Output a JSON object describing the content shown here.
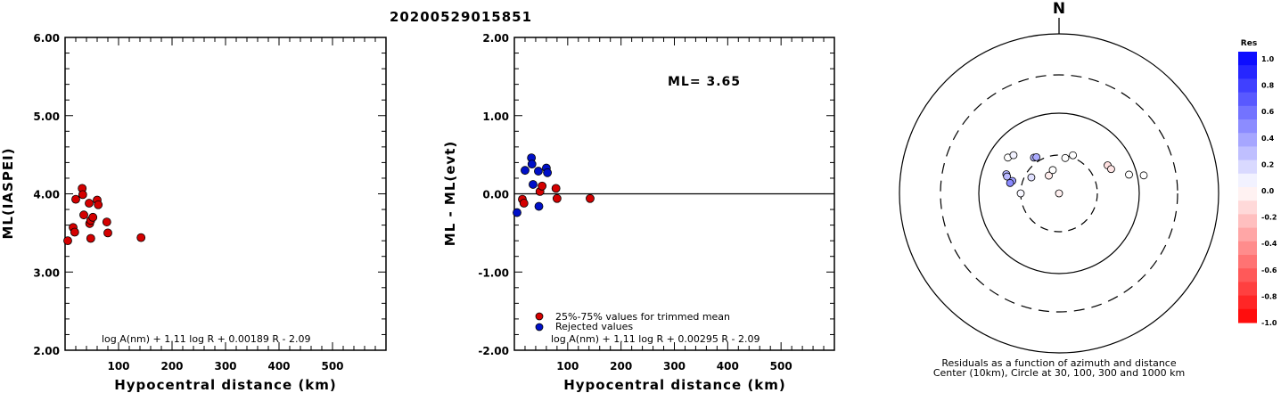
{
  "title": "20200529015851",
  "left_panel": {
    "ylabel": "ML(IASPEI)",
    "xlabel": "Hypocentral distance (km)",
    "formula": "log A(nm) + 1.11 log R + 0.00189 R - 2.09"
  },
  "middle_panel": {
    "ylabel": "ML - ML(evt)",
    "xlabel": "Hypocentral distance (km)",
    "ml_text": "ML= 3.65",
    "legend_used": "25%-75% values for trimmed mean",
    "legend_rejected": "Rejected values",
    "formula": "log A(nm) + 1.11 log R + 0.00295 R - 2.09"
  },
  "polar_panel": {
    "north_label": "N",
    "caption1": "Residuals as a function of azimuth and distance",
    "caption2": "Center (10km), Circle at 30, 100, 300 and 1000 km",
    "colorbar_title": "Res"
  },
  "colors": {
    "used": "#d40000",
    "rejected": "#0010c8",
    "outline": "#000000"
  },
  "chart_data": [
    {
      "type": "scatter",
      "panel": "left",
      "xlim": [
        0,
        600
      ],
      "ylim": [
        2,
        6
      ],
      "xticks": [
        100,
        200,
        300,
        400,
        500
      ],
      "yticks": [
        "2.00",
        "3.00",
        "4.00",
        "5.00",
        "6.00"
      ],
      "points": [
        [
          5,
          3.4
        ],
        [
          15,
          3.57
        ],
        [
          18,
          3.51
        ],
        [
          20,
          3.93
        ],
        [
          32,
          4.07
        ],
        [
          33,
          3.99
        ],
        [
          35,
          3.73
        ],
        [
          45,
          3.88
        ],
        [
          46,
          3.62
        ],
        [
          48,
          3.66
        ],
        [
          48,
          3.43
        ],
        [
          52,
          3.7
        ],
        [
          60,
          3.92
        ],
        [
          62,
          3.86
        ],
        [
          78,
          3.64
        ],
        [
          80,
          3.5
        ],
        [
          142,
          3.44
        ]
      ]
    },
    {
      "type": "scatter",
      "panel": "middle",
      "xlim": [
        0,
        600
      ],
      "ylim": [
        -2,
        2
      ],
      "xticks": [
        100,
        200,
        300,
        400,
        500
      ],
      "yticks": [
        "-2.00",
        "-1.00",
        "0.00",
        "1.00",
        "2.00"
      ],
      "used": [
        [
          15,
          -0.07
        ],
        [
          18,
          -0.12
        ],
        [
          48,
          0.03
        ],
        [
          52,
          0.1
        ],
        [
          78,
          0.07
        ],
        [
          80,
          -0.06
        ],
        [
          142,
          -0.06
        ]
      ],
      "rejected": [
        [
          5,
          -0.24
        ],
        [
          20,
          0.3
        ],
        [
          32,
          0.46
        ],
        [
          33,
          0.38
        ],
        [
          35,
          0.12
        ],
        [
          45,
          0.29
        ],
        [
          46,
          -0.16
        ],
        [
          60,
          0.33
        ],
        [
          62,
          0.27
        ]
      ]
    },
    {
      "type": "polar",
      "panel": "polar",
      "rings_km": [
        30,
        100,
        300,
        1000
      ],
      "colorbar_ticks": [
        "1.0",
        "0.8",
        "0.6",
        "0.4",
        "0.2",
        "0.0",
        "-0.2",
        "-0.4",
        "-0.6",
        "-0.8",
        "-1.0"
      ],
      "points": [
        {
          "az": 305,
          "dist_km": 60,
          "res": 0.0
        },
        {
          "az": 310,
          "dist_km": 55,
          "res": 0.05
        },
        {
          "az": 290,
          "dist_km": 50,
          "res": 0.3
        },
        {
          "az": 288,
          "dist_km": 48,
          "res": 0.27
        },
        {
          "az": 325,
          "dist_km": 35,
          "res": 0.29
        },
        {
          "az": 328,
          "dist_km": 34,
          "res": 0.33
        },
        {
          "az": 285,
          "dist_km": 40,
          "res": 0.38
        },
        {
          "az": 282,
          "dist_km": 42,
          "res": 0.46
        },
        {
          "az": 300,
          "dist_km": 25,
          "res": 0.12
        },
        {
          "az": 270,
          "dist_km": 30,
          "res": 0.03
        },
        {
          "az": 330,
          "dist_km": 18,
          "res": -0.07
        },
        {
          "az": 345,
          "dist_km": 20,
          "res": 0.0
        },
        {
          "az": 10,
          "dist_km": 28,
          "res": 0.0
        },
        {
          "az": 20,
          "dist_km": 32,
          "res": 0.0
        },
        {
          "az": 60,
          "dist_km": 50,
          "res": -0.12
        },
        {
          "az": 65,
          "dist_km": 52,
          "res": -0.1
        },
        {
          "az": 75,
          "dist_km": 80,
          "res": 0.0
        },
        {
          "az": 78,
          "dist_km": 120,
          "res": 0.0
        },
        {
          "az": 285,
          "dist_km": 8,
          "res": -0.06
        }
      ]
    }
  ]
}
